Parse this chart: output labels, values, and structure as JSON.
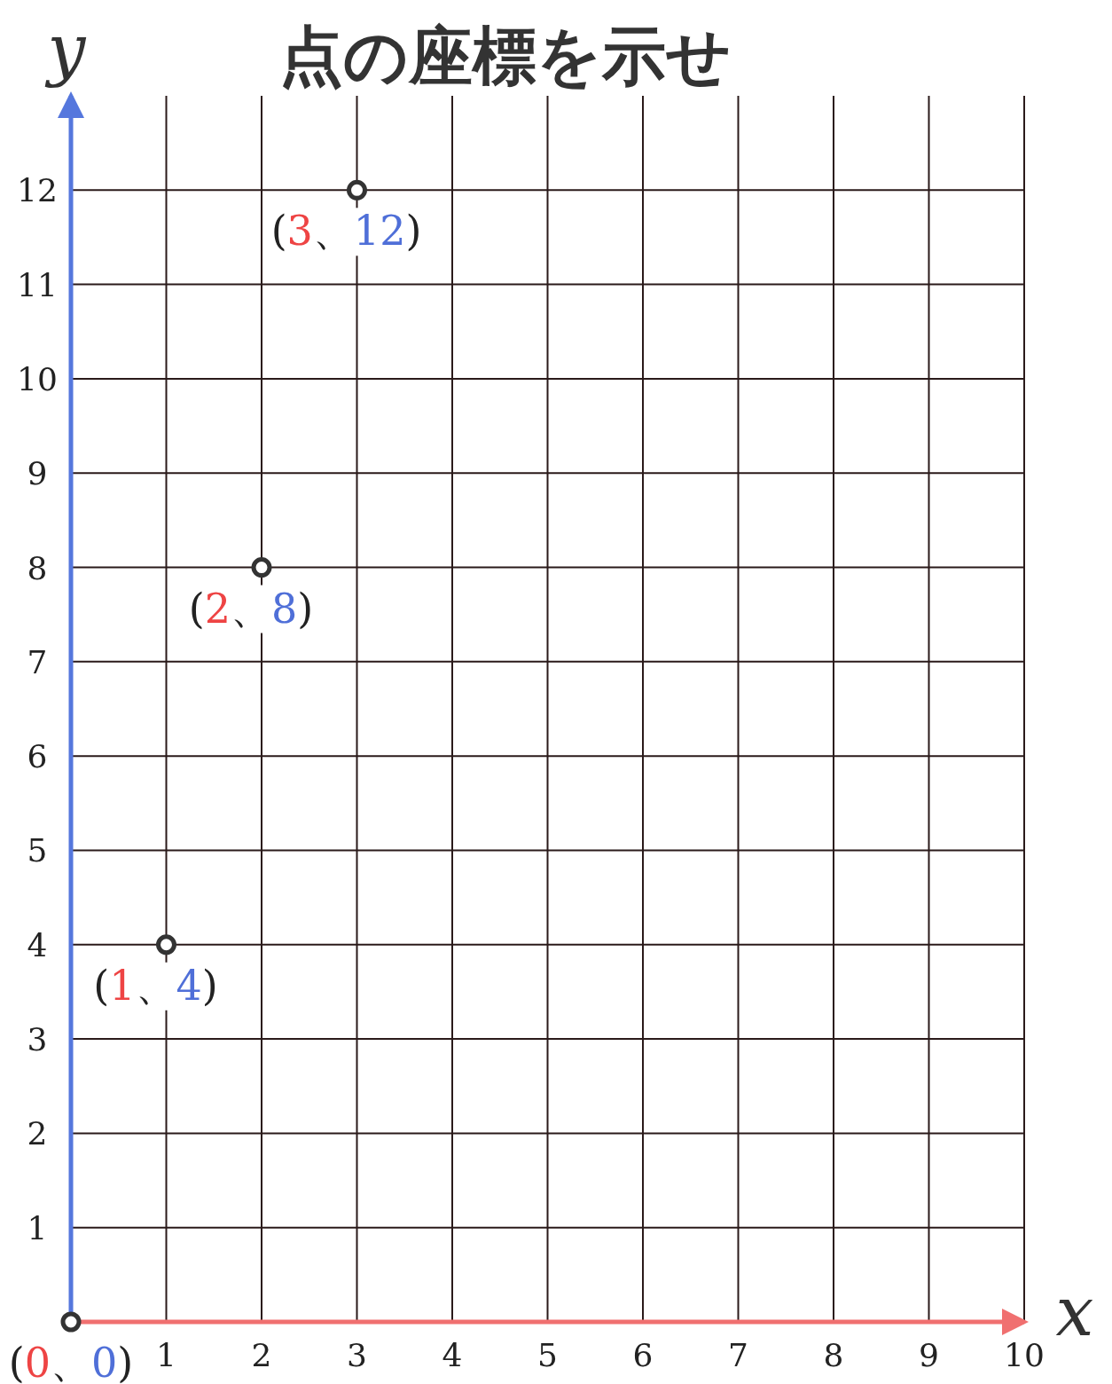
{
  "chart_data": {
    "type": "scatter",
    "title": "点の座標を示せ",
    "xlabel": "x",
    "ylabel": "y",
    "x": [
      0,
      1,
      2,
      3
    ],
    "values": [
      0,
      4,
      8,
      12
    ],
    "color": "#333333",
    "marker": "circle",
    "xlim": [
      0,
      10
    ],
    "ylim": [
      0,
      13
    ],
    "xticks": [
      1,
      2,
      3,
      4,
      5,
      6,
      7,
      8,
      9,
      10
    ],
    "yticks": [
      1,
      2,
      3,
      4,
      5,
      6,
      7,
      8,
      9,
      10,
      11,
      12
    ],
    "grid": true,
    "annotations": [
      {
        "text": "(0、0)",
        "x": 0,
        "y": 0
      },
      {
        "text": "(1、4)",
        "x": 1,
        "y": 4
      },
      {
        "text": "(2、8)",
        "x": 2,
        "y": 8
      },
      {
        "text": "(3、12)",
        "x": 3,
        "y": 12
      }
    ]
  }
}
